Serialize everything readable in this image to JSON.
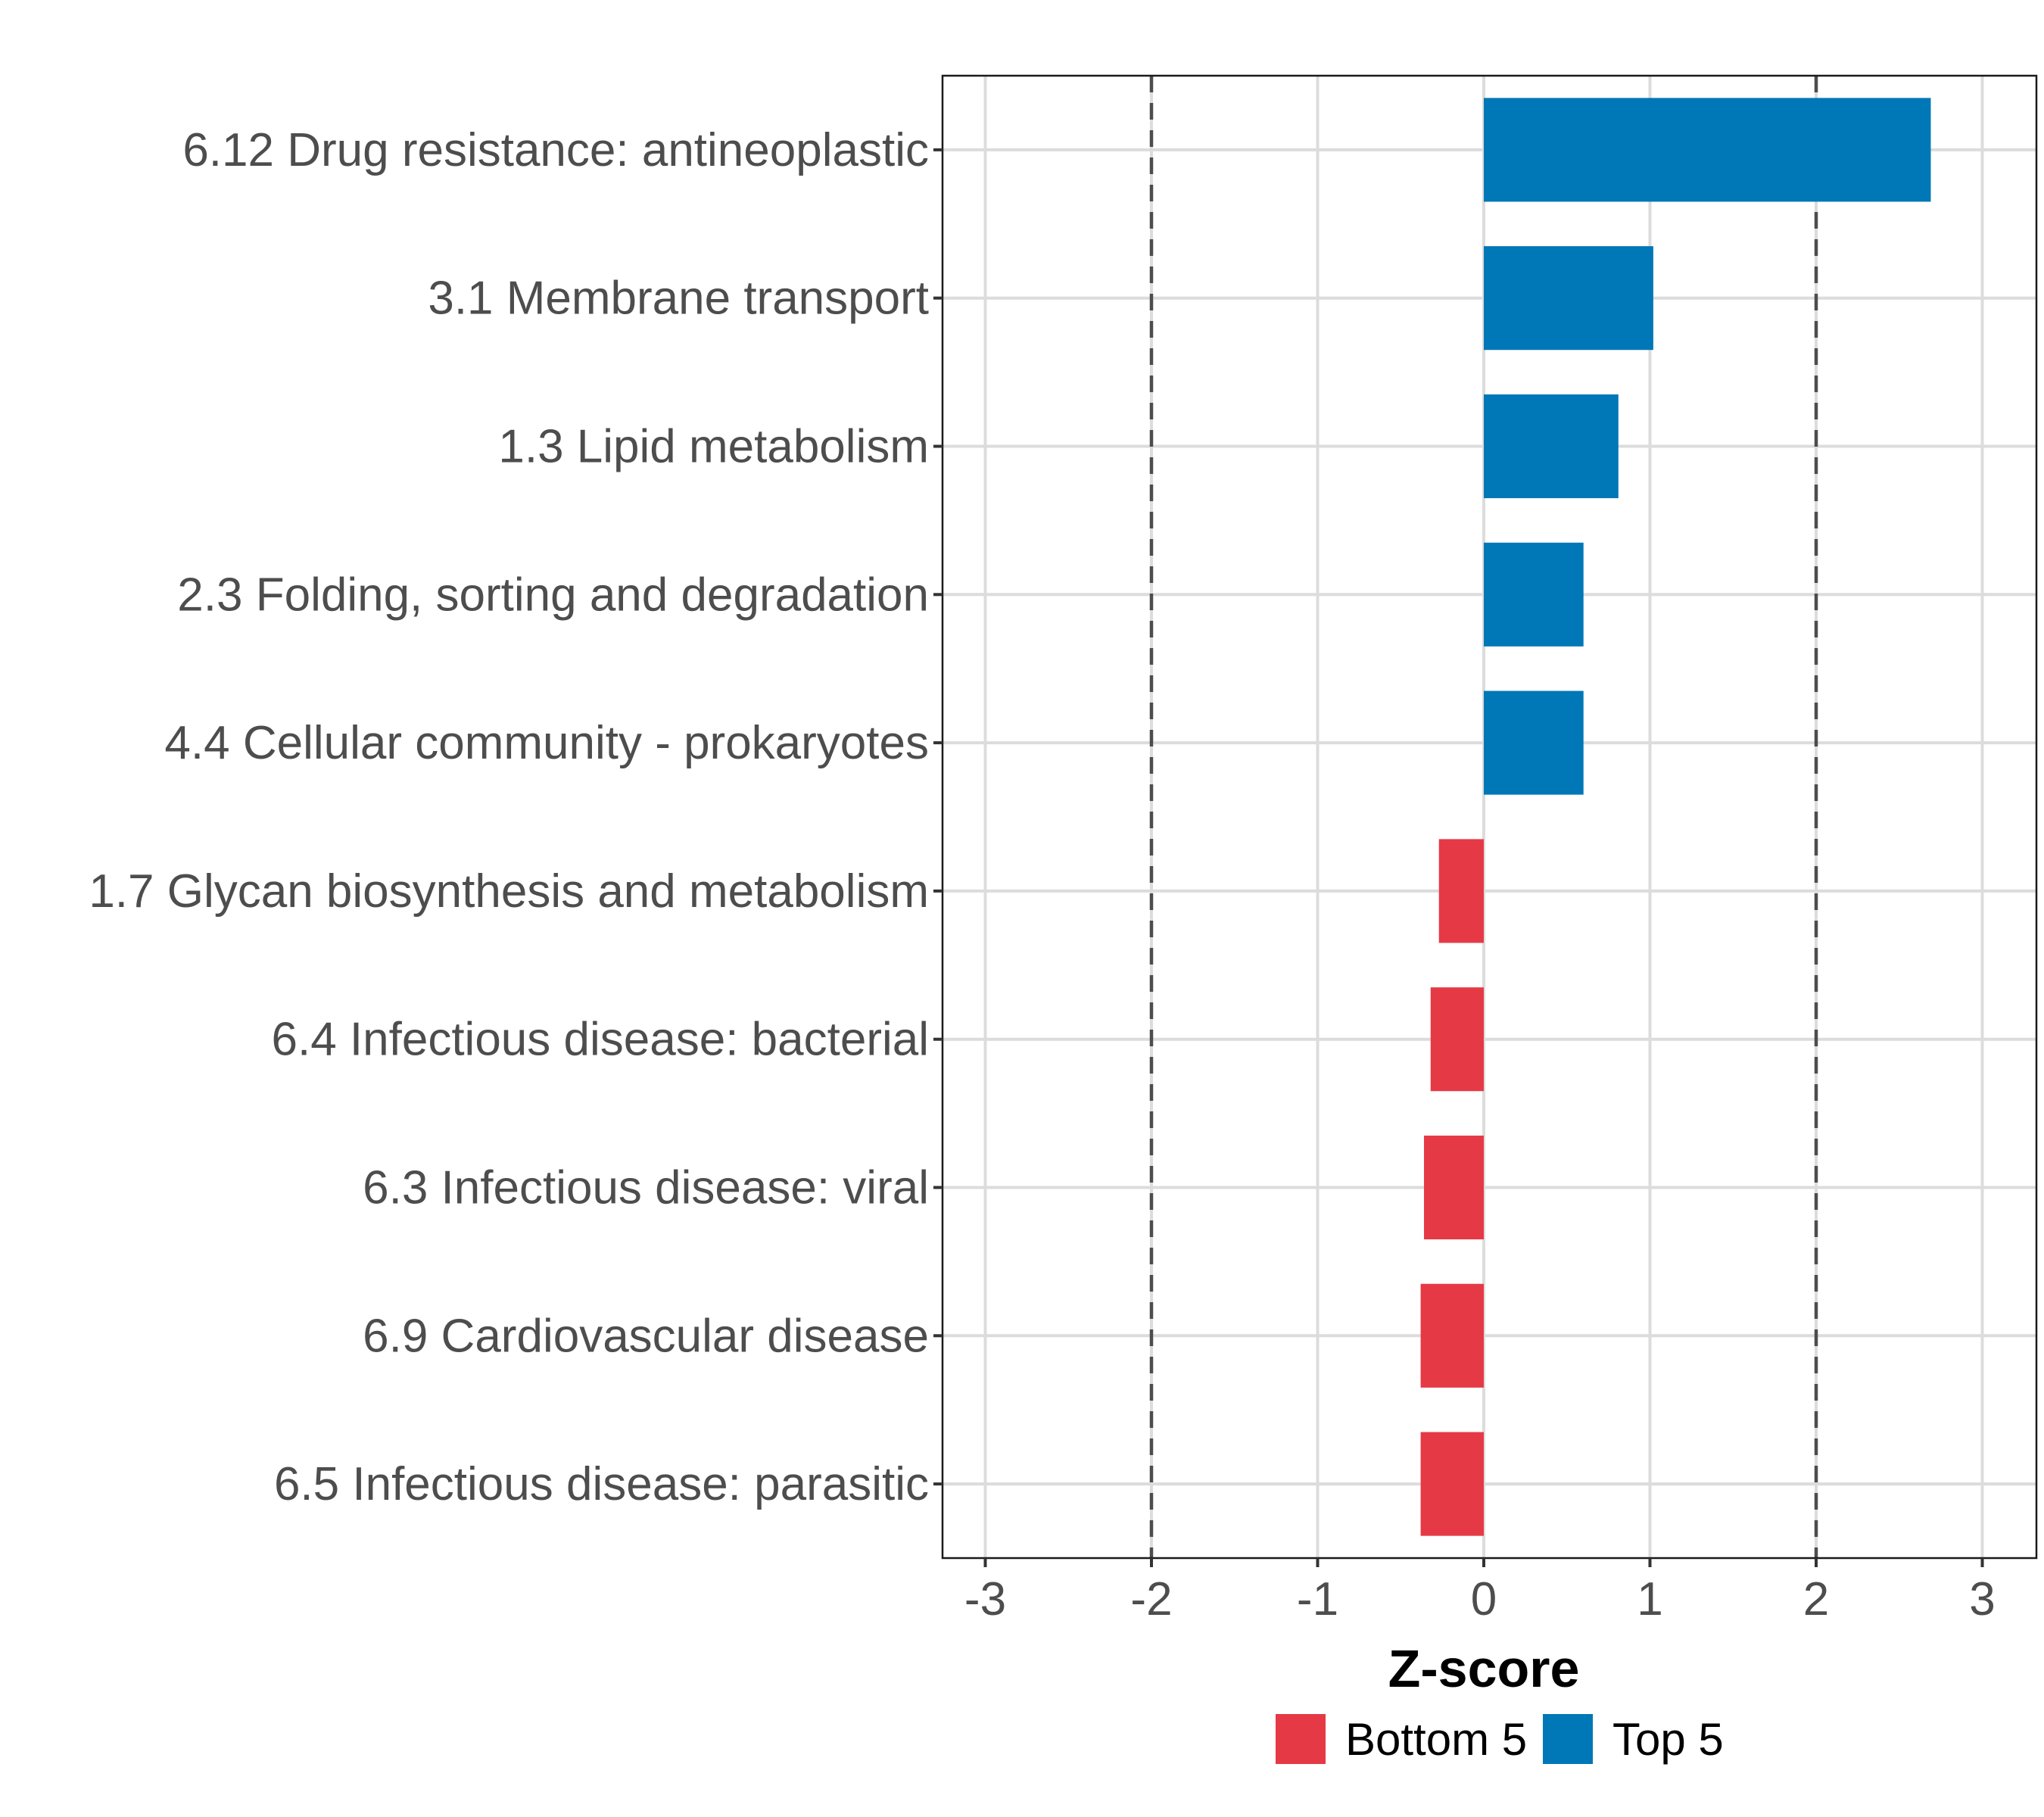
{
  "chart_data": {
    "type": "bar",
    "orientation": "horizontal",
    "title": "",
    "xlabel": "Z-score",
    "ylabel": "",
    "xlim": [
      -3.3,
      3.3
    ],
    "x_ticks": [
      -3,
      -2,
      -1,
      0,
      1,
      2,
      3
    ],
    "x_tick_labels": [
      "-3",
      "-2",
      "-1",
      "0",
      "1",
      "2",
      "3"
    ],
    "grid": true,
    "reference_lines": [
      {
        "x": -2,
        "style": "dashed",
        "color": "#4d4d4d"
      },
      {
        "x": 2,
        "style": "dashed",
        "color": "#4d4d4d"
      }
    ],
    "categories": [
      "6.12 Drug resistance: antineoplastic",
      "3.1 Membrane transport",
      "1.3 Lipid metabolism",
      "2.3 Folding, sorting and degradation",
      "4.4 Cellular community - prokaryotes",
      "1.7 Glycan biosynthesis and metabolism",
      "6.4 Infectious disease: bacterial",
      "6.3 Infectious disease: viral",
      "6.9 Cardiovascular disease",
      "6.5 Infectious disease: parasitic"
    ],
    "values": [
      2.69,
      1.02,
      0.81,
      0.6,
      0.6,
      -0.27,
      -0.32,
      -0.36,
      -0.38,
      -0.38
    ],
    "groups": [
      "Top 5",
      "Top 5",
      "Top 5",
      "Top 5",
      "Top 5",
      "Bottom 5",
      "Bottom 5",
      "Bottom 5",
      "Bottom 5",
      "Bottom 5"
    ],
    "legend": {
      "position": "bottom",
      "entries": [
        {
          "label": "Bottom 5",
          "color": "#E63946"
        },
        {
          "label": "Top 5",
          "color": "#0077B6"
        }
      ]
    },
    "colors": {
      "Top 5": "#0077B6",
      "Bottom 5": "#E63946"
    }
  }
}
